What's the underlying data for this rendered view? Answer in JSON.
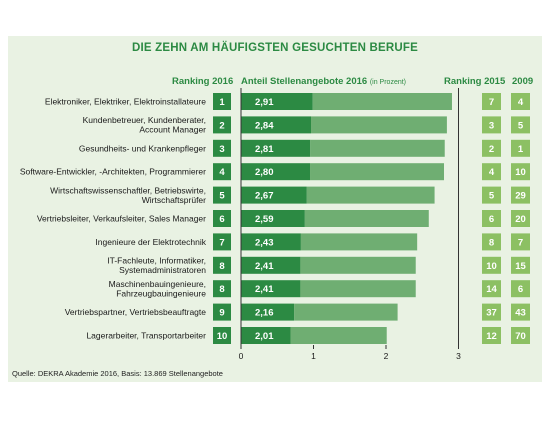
{
  "title": "DIE ZEHN AM HÄUFIGSTEN GESUCHTEN BERUFE",
  "headers": {
    "rank2016": "Ranking 2016",
    "share": "Anteil Stellenangebote 2016",
    "share_unit": "(in Prozent)",
    "rank2015": "Ranking 2015",
    "y2009": "2009"
  },
  "source": "Quelle: DEKRA Akademie 2016, Basis: 13.869 Stellenangebote",
  "colors": {
    "panel": "#e9f2e3",
    "rank_box": "#2c8a43",
    "bar_dark": "#2c8a43",
    "bar_light": "#6fae72",
    "right_box": "#8cc063",
    "title": "#2c8a43"
  },
  "chart_data": {
    "type": "bar",
    "title": "DIE ZEHN AM HÄUFIGSTEN GESUCHTEN BERUFE",
    "xlabel": "Anteil Stellenangebote 2016 (in Prozent)",
    "xlim": [
      0,
      3
    ],
    "xticks": [
      "0",
      "1",
      "2",
      "3"
    ],
    "categories": [
      "Elektroniker, Elektriker, Elektroinstallateure",
      "Kundenbetreuer, Kundenberater, Account Manager",
      "Gesundheits- und Krankenpfleger",
      "Software-Entwickler, -Architekten, Programmierer",
      "Wirtschaftswissenschaftler, Betriebswirte, Wirtschaftsprüfer",
      "Vertriebsleiter, Verkaufsleiter, Sales Manager",
      "Ingenieure der Elektrotechnik",
      "IT-Fachleute, Informatiker, Systemadministratoren",
      "Maschinenbauingenieure, Fahrzeugbauingenieure",
      "Vertriebspartner, Vertriebsbeauftragte",
      "Lagerarbeiter, Transportarbeiter"
    ],
    "label_lines": [
      [
        "Elektroniker, Elektriker, Elektroinstallateure"
      ],
      [
        "Kundenbetreuer, Kundenberater,",
        "Account Manager"
      ],
      [
        "Gesundheits- und Krankenpfleger"
      ],
      [
        "Software-Entwickler, -Architekten, Programmierer"
      ],
      [
        "Wirtschaftswissenschaftler, Betriebswirte,",
        "Wirtschaftsprüfer"
      ],
      [
        "Vertriebsleiter, Verkaufsleiter, Sales Manager"
      ],
      [
        "Ingenieure der Elektrotechnik"
      ],
      [
        "IT-Fachleute, Informatiker,",
        "Systemadministratoren"
      ],
      [
        "Maschinenbauingenieure,",
        "Fahrzeugbauingenieure"
      ],
      [
        "Vertriebspartner, Vertriebsbeauftragte"
      ],
      [
        "Lagerarbeiter, Transportarbeiter"
      ]
    ],
    "ranking_2016": [
      "1",
      "2",
      "3",
      "4",
      "5",
      "6",
      "7",
      "8",
      "8",
      "9",
      "10"
    ],
    "values": [
      2.91,
      2.84,
      2.81,
      2.8,
      2.67,
      2.59,
      2.43,
      2.41,
      2.41,
      2.16,
      2.01
    ],
    "value_labels": [
      "2,91",
      "2,84",
      "2,81",
      "2,80",
      "2,67",
      "2,59",
      "2,43",
      "2,41",
      "2,41",
      "2,16",
      "2,01"
    ],
    "ranking_2015": [
      "7",
      "3",
      "2",
      "4",
      "5",
      "6",
      "8",
      "10",
      "14",
      "37",
      "12"
    ],
    "ranking_2009": [
      "4",
      "5",
      "1",
      "10",
      "29",
      "20",
      "7",
      "15",
      "6",
      "43",
      "70"
    ]
  }
}
